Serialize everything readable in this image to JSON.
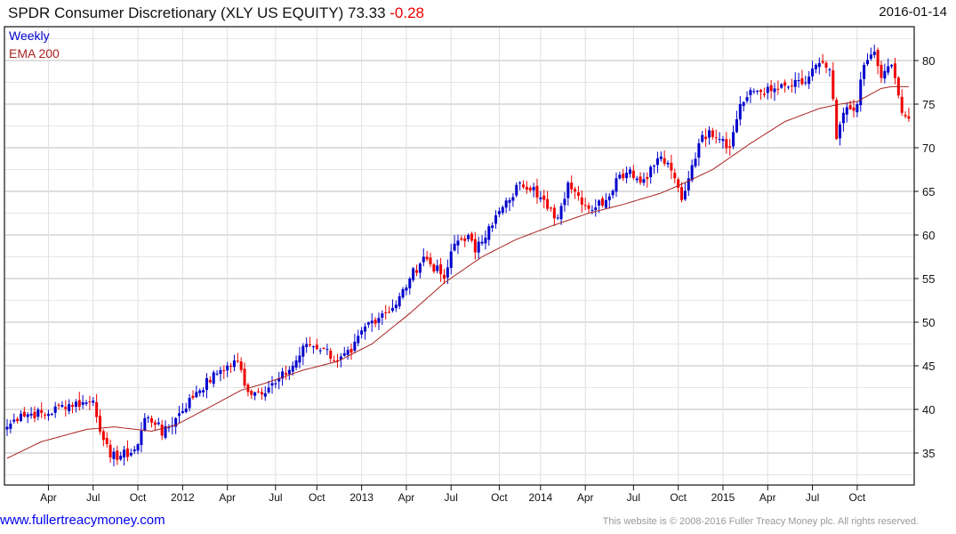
{
  "header": {
    "name": "SPDR Consumer Discretionary (XLY US EQUITY)",
    "last": "73.33",
    "change": "-0.28",
    "date": "2016-01-14"
  },
  "legend": {
    "period": "Weekly",
    "ema": "EMA 200"
  },
  "footer": {
    "link": "www.fullertreacymoney.com",
    "copyright": "This website is © 2008-2016 Fuller Treacy Money plc. All rights reserved."
  },
  "colors": {
    "up": "#0000cc",
    "down": "#ee0000",
    "ema": "#aa2222",
    "grid": "#d8d8d8"
  },
  "chart_data": {
    "type": "candlestick",
    "title": "SPDR Consumer Discretionary (XLY US EQUITY)",
    "frequency": "weekly",
    "ylim": [
      31.2,
      83.9
    ],
    "y_ticks": [
      35,
      40,
      45,
      50,
      55,
      60,
      65,
      70,
      75,
      80
    ],
    "x_tick_labels": [
      "Apr",
      "Jul",
      "Oct",
      "2012",
      "Apr",
      "Jul",
      "Oct",
      "2013",
      "Apr",
      "Jul",
      "Oct",
      "2014",
      "Apr",
      "Jul",
      "Oct",
      "2015",
      "Apr",
      "Jul",
      "Oct"
    ],
    "weeks_total": 263,
    "x_tick_weeks": [
      12,
      25,
      38,
      51,
      64,
      78,
      90,
      103,
      116,
      129,
      143,
      155,
      168,
      182,
      195,
      208,
      221,
      234,
      247
    ],
    "close_anchors_week_price": [
      [
        0,
        38
      ],
      [
        4,
        39.5
      ],
      [
        12,
        39.5
      ],
      [
        16,
        40.5
      ],
      [
        23,
        40.8
      ],
      [
        25,
        41
      ],
      [
        28,
        36.5
      ],
      [
        30,
        34.5
      ],
      [
        36,
        35
      ],
      [
        38,
        36
      ],
      [
        40,
        39
      ],
      [
        44,
        38.5
      ],
      [
        45,
        37
      ],
      [
        49,
        39
      ],
      [
        55,
        42
      ],
      [
        62,
        44.5
      ],
      [
        67,
        45.5
      ],
      [
        70,
        42
      ],
      [
        73,
        42
      ],
      [
        78,
        43
      ],
      [
        83,
        45
      ],
      [
        87,
        47.5
      ],
      [
        92,
        47
      ],
      [
        96,
        45.5
      ],
      [
        100,
        46.5
      ],
      [
        104,
        49.5
      ],
      [
        109,
        51
      ],
      [
        113,
        52
      ],
      [
        117,
        55
      ],
      [
        121,
        57.5
      ],
      [
        126,
        55.5
      ],
      [
        127,
        55
      ],
      [
        130,
        59
      ],
      [
        134,
        60
      ],
      [
        136,
        58
      ],
      [
        140,
        61
      ],
      [
        146,
        64
      ],
      [
        149,
        66
      ],
      [
        153,
        65.5
      ],
      [
        157,
        63
      ],
      [
        160,
        62
      ],
      [
        163,
        66
      ],
      [
        166,
        64.5
      ],
      [
        169,
        63
      ],
      [
        174,
        64
      ],
      [
        177,
        66.5
      ],
      [
        181,
        67.5
      ],
      [
        184,
        66
      ],
      [
        190,
        69
      ],
      [
        194,
        66.5
      ],
      [
        196,
        64
      ],
      [
        199,
        68
      ],
      [
        201,
        70.5
      ],
      [
        204,
        72
      ],
      [
        208,
        71
      ],
      [
        210,
        70
      ],
      [
        213,
        75
      ],
      [
        217,
        76.5
      ],
      [
        222,
        76.5
      ],
      [
        227,
        77
      ],
      [
        232,
        77.5
      ],
      [
        235,
        79.5
      ],
      [
        239,
        79
      ],
      [
        241,
        71
      ],
      [
        243,
        74
      ],
      [
        247,
        75
      ],
      [
        249,
        79.5
      ],
      [
        252,
        81
      ],
      [
        254,
        78
      ],
      [
        257,
        79.5
      ],
      [
        258,
        78
      ],
      [
        260,
        74
      ],
      [
        262,
        73.33
      ]
    ],
    "ema200_anchors_week_price": [
      [
        0,
        34.4
      ],
      [
        10,
        36.3
      ],
      [
        23,
        37.7
      ],
      [
        31,
        38
      ],
      [
        42,
        37.5
      ],
      [
        49,
        38.2
      ],
      [
        60,
        40.5
      ],
      [
        68,
        42.2
      ],
      [
        75,
        43
      ],
      [
        86,
        44.5
      ],
      [
        96,
        45.5
      ],
      [
        106,
        47.5
      ],
      [
        117,
        51
      ],
      [
        127,
        54.5
      ],
      [
        138,
        57.5
      ],
      [
        148,
        59.5
      ],
      [
        158,
        61
      ],
      [
        169,
        62.5
      ],
      [
        179,
        63.5
      ],
      [
        190,
        64.8
      ],
      [
        197,
        66
      ],
      [
        205,
        67.5
      ],
      [
        216,
        70.5
      ],
      [
        226,
        73
      ],
      [
        236,
        74.5
      ],
      [
        242,
        75
      ],
      [
        247,
        75.3
      ],
      [
        254,
        76.8
      ],
      [
        257,
        77
      ],
      [
        262,
        77
      ]
    ]
  }
}
